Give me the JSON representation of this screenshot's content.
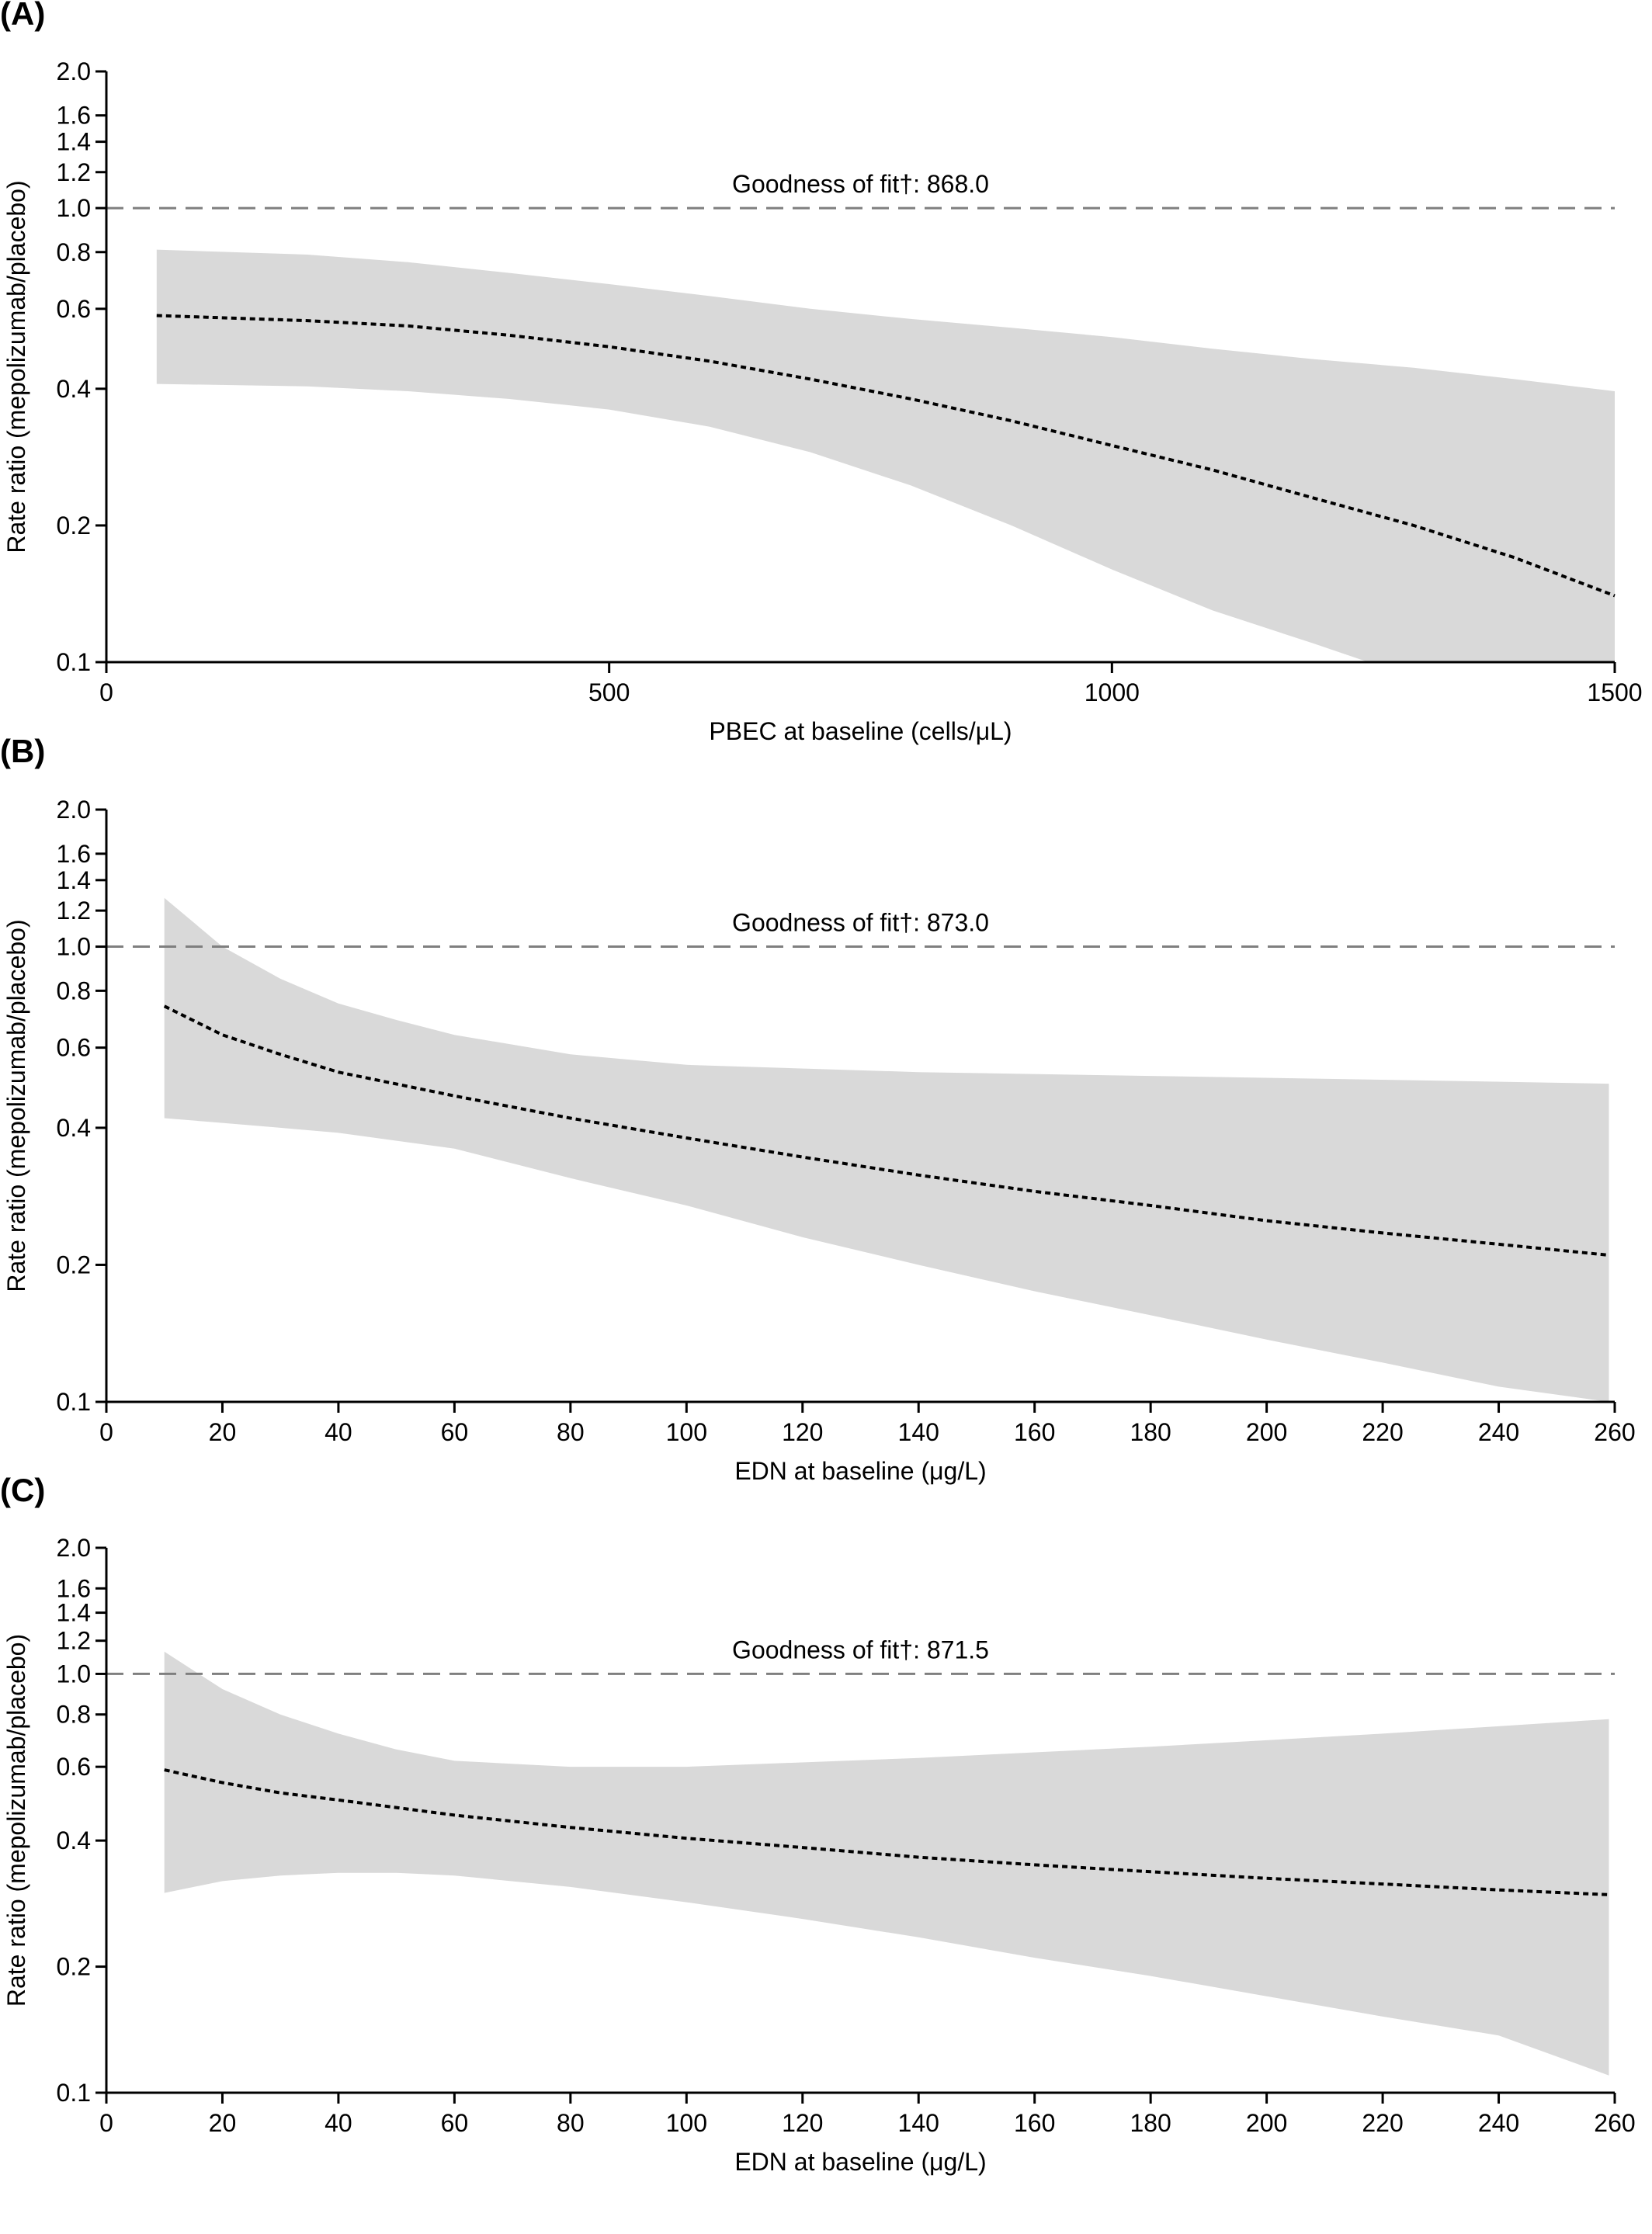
{
  "chart_data": [
    {
      "panel_label": "(A)",
      "type": "line",
      "xlabel": "PBEC at baseline (cells/μL)",
      "ylabel": "Rate ratio (mepolizumab/placebo)",
      "xlim": [
        0,
        1500
      ],
      "ylim": [
        0.1,
        2.0
      ],
      "yscale": "log",
      "x_ticks": [
        0,
        500,
        1000,
        1500
      ],
      "y_ticks": [
        0.1,
        0.2,
        0.4,
        0.6,
        0.8,
        1.0,
        1.2,
        1.4,
        1.6,
        2.0
      ],
      "annotation": "Goodness of fit†: 868.0",
      "reference_line": {
        "y": 1.0,
        "style": "dashed"
      },
      "colors": {
        "ci_band": "#d9d9d9",
        "estimate_line": "#000000",
        "reference_line": "#7f7f7f"
      },
      "series": [
        {
          "role": "estimate",
          "x": [
            50,
            100,
            200,
            300,
            400,
            500,
            600,
            700,
            800,
            900,
            1000,
            1100,
            1200,
            1300,
            1400,
            1500
          ],
          "y": [
            0.58,
            0.575,
            0.565,
            0.55,
            0.525,
            0.495,
            0.46,
            0.42,
            0.38,
            0.34,
            0.3,
            0.265,
            0.23,
            0.2,
            0.17,
            0.14
          ]
        },
        {
          "role": "ci_upper",
          "x": [
            50,
            200,
            300,
            400,
            500,
            600,
            700,
            800,
            900,
            1000,
            1100,
            1200,
            1300,
            1400,
            1500
          ],
          "y": [
            0.81,
            0.79,
            0.76,
            0.72,
            0.68,
            0.64,
            0.6,
            0.57,
            0.545,
            0.52,
            0.49,
            0.465,
            0.445,
            0.42,
            0.395
          ]
        },
        {
          "role": "ci_lower",
          "x": [
            50,
            200,
            300,
            400,
            500,
            600,
            700,
            800,
            900,
            1000,
            1100,
            1200,
            1255
          ],
          "y": [
            0.41,
            0.405,
            0.395,
            0.38,
            0.36,
            0.33,
            0.29,
            0.245,
            0.2,
            0.16,
            0.13,
            0.11,
            0.1
          ]
        }
      ]
    },
    {
      "panel_label": "(B)",
      "type": "line",
      "xlabel": "EDN at baseline (μg/L)",
      "ylabel": "Rate ratio (mepolizumab/placebo)",
      "xlim": [
        0,
        260
      ],
      "ylim": [
        0.1,
        2.0
      ],
      "yscale": "log",
      "x_ticks": [
        0,
        20,
        40,
        60,
        80,
        100,
        120,
        140,
        160,
        180,
        200,
        220,
        240,
        260
      ],
      "y_ticks": [
        0.1,
        0.2,
        0.4,
        0.6,
        0.8,
        1.0,
        1.2,
        1.4,
        1.6,
        2.0
      ],
      "annotation": "Goodness of fit†: 873.0",
      "reference_line": {
        "y": 1.0,
        "style": "dashed"
      },
      "colors": {
        "ci_band": "#d9d9d9",
        "estimate_line": "#000000",
        "reference_line": "#7f7f7f"
      },
      "series": [
        {
          "role": "estimate",
          "x": [
            10,
            20,
            30,
            40,
            60,
            80,
            100,
            120,
            140,
            160,
            180,
            200,
            220,
            240,
            259
          ],
          "y": [
            0.74,
            0.64,
            0.58,
            0.53,
            0.47,
            0.42,
            0.38,
            0.345,
            0.315,
            0.29,
            0.27,
            0.25,
            0.235,
            0.222,
            0.21
          ]
        },
        {
          "role": "ci_upper",
          "x": [
            10,
            20,
            30,
            40,
            50,
            60,
            80,
            100,
            140,
            180,
            220,
            259
          ],
          "y": [
            1.28,
            1.0,
            0.85,
            0.75,
            0.69,
            0.64,
            0.58,
            0.55,
            0.53,
            0.52,
            0.51,
            0.5
          ]
        },
        {
          "role": "ci_lower",
          "x": [
            10,
            20,
            30,
            40,
            60,
            80,
            100,
            120,
            140,
            160,
            180,
            200,
            220,
            240,
            259
          ],
          "y": [
            0.42,
            0.41,
            0.4,
            0.39,
            0.36,
            0.31,
            0.27,
            0.23,
            0.2,
            0.175,
            0.155,
            0.137,
            0.122,
            0.108,
            0.1
          ]
        }
      ]
    },
    {
      "panel_label": "(C)",
      "type": "line",
      "xlabel": "EDN at baseline (μg/L)",
      "ylabel": "Rate ratio (mepolizumab/placebo)",
      "xlim": [
        0,
        260
      ],
      "ylim": [
        0.1,
        2.0
      ],
      "yscale": "log",
      "x_ticks": [
        0,
        20,
        40,
        60,
        80,
        100,
        120,
        140,
        160,
        180,
        200,
        220,
        240,
        260
      ],
      "y_ticks": [
        0.1,
        0.2,
        0.4,
        0.6,
        0.8,
        1.0,
        1.2,
        1.4,
        1.6,
        2.0
      ],
      "annotation": "Goodness of fit†: 871.5",
      "reference_line": {
        "y": 1.0,
        "style": "dashed"
      },
      "colors": {
        "ci_band": "#d9d9d9",
        "estimate_line": "#000000",
        "reference_line": "#7f7f7f"
      },
      "series": [
        {
          "role": "estimate",
          "x": [
            10,
            20,
            30,
            40,
            60,
            80,
            100,
            120,
            140,
            160,
            180,
            200,
            220,
            240,
            259
          ],
          "y": [
            0.59,
            0.55,
            0.52,
            0.5,
            0.46,
            0.43,
            0.405,
            0.385,
            0.365,
            0.35,
            0.337,
            0.325,
            0.315,
            0.305,
            0.297
          ]
        },
        {
          "role": "ci_upper",
          "x": [
            10,
            20,
            30,
            40,
            50,
            60,
            80,
            100,
            140,
            180,
            220,
            259
          ],
          "y": [
            1.13,
            0.92,
            0.8,
            0.72,
            0.66,
            0.62,
            0.6,
            0.6,
            0.63,
            0.67,
            0.72,
            0.78
          ]
        },
        {
          "role": "ci_lower",
          "x": [
            10,
            20,
            30,
            40,
            50,
            60,
            80,
            100,
            120,
            140,
            160,
            180,
            200,
            220,
            240,
            259
          ],
          "y": [
            0.3,
            0.32,
            0.33,
            0.335,
            0.335,
            0.33,
            0.31,
            0.285,
            0.26,
            0.235,
            0.21,
            0.19,
            0.17,
            0.152,
            0.137,
            0.11
          ]
        }
      ]
    }
  ]
}
